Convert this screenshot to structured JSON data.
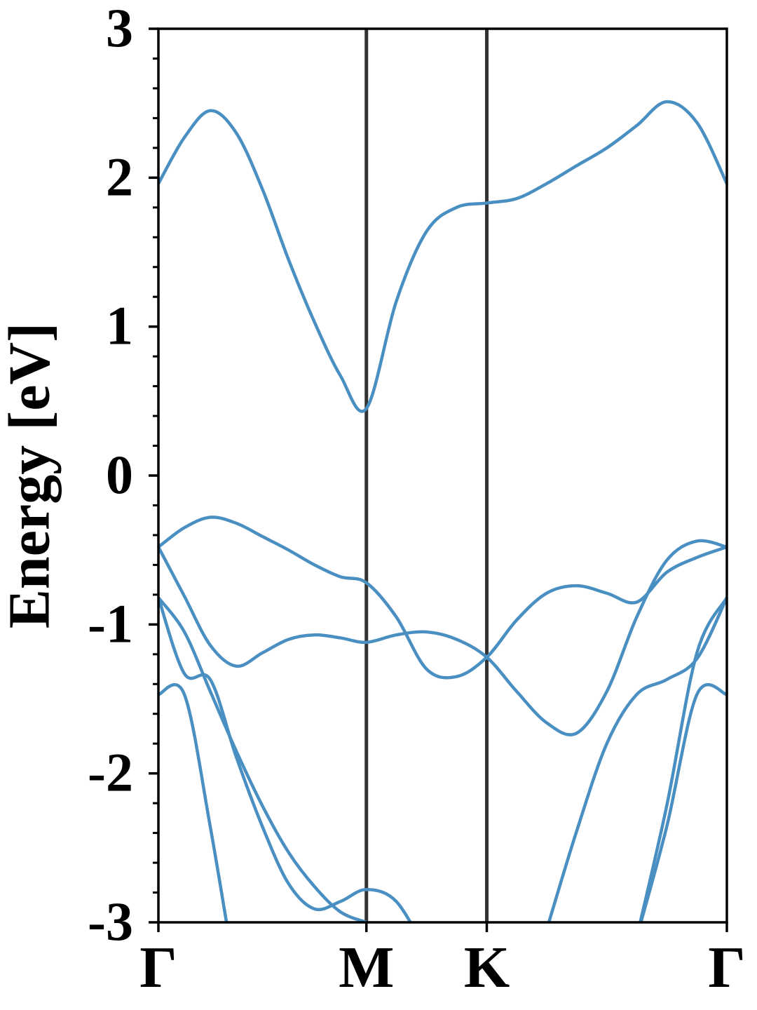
{
  "chart_data": {
    "type": "line",
    "ylabel": "Energy [eV]",
    "color": "#4a8fc2",
    "x": [
      0,
      0.072,
      0.144,
      0.216,
      0.289,
      0.361,
      0.433,
      0.505,
      0.577,
      0.66,
      0.744,
      0.827,
      0.911,
      0.994,
      1.077,
      1.16,
      1.244,
      1.327,
      1.41,
      1.494,
      1.577
    ],
    "xlim": [
      0,
      1.577
    ],
    "xticks": [
      {
        "value": 0,
        "label": "Γ"
      },
      {
        "value": 0.577,
        "label": "M"
      },
      {
        "value": 0.911,
        "label": "K"
      },
      {
        "value": 1.577,
        "label": "Γ"
      }
    ],
    "xtick_lines": [
      0.577,
      0.911
    ],
    "ylim": [
      -3,
      3
    ],
    "yticks": [
      -3,
      -2,
      -1,
      0,
      1,
      2,
      3
    ],
    "yminorticks": [
      -2.8,
      -2.6,
      -2.4,
      -2.2,
      -1.8,
      -1.6,
      -1.4,
      -1.2,
      -0.8,
      -0.6,
      -0.4,
      -0.2,
      0.2,
      0.4,
      0.6,
      0.8,
      1.2,
      1.4,
      1.6,
      1.8,
      2.2,
      2.4,
      2.6,
      2.8
    ],
    "series": [
      {
        "values": [
          1.96,
          2.27,
          2.45,
          2.3,
          1.92,
          1.45,
          1.03,
          0.67,
          0.45,
          1.17,
          1.64,
          1.8,
          1.83,
          1.86,
          1.96,
          2.08,
          2.2,
          2.35,
          2.51,
          2.37,
          1.96
        ]
      },
      {
        "values": [
          -0.48,
          -0.35,
          -0.28,
          -0.32,
          -0.41,
          -0.5,
          -0.6,
          -0.68,
          -0.72,
          -0.95,
          -1.3,
          -1.35,
          -1.22,
          -0.97,
          -0.79,
          -0.74,
          -0.79,
          -0.85,
          -0.65,
          -0.55,
          -0.48
        ]
      },
      {
        "values": [
          -0.48,
          -0.81,
          -1.14,
          -1.28,
          -1.19,
          -1.1,
          -1.07,
          -1.09,
          -1.12,
          -1.07,
          -1.05,
          -1.1,
          -1.22,
          -1.45,
          -1.66,
          -1.73,
          -1.45,
          -0.95,
          -0.57,
          -0.44,
          -0.48
        ]
      },
      {
        "values": [
          -0.82,
          -1.33,
          -1.37,
          -1.89,
          -2.36,
          -2.74,
          -2.91,
          -2.86,
          -2.78,
          -2.86,
          -3.2,
          null,
          null,
          null,
          -3.05,
          -2.39,
          -1.8,
          -1.47,
          -1.37,
          -1.23,
          -0.82
        ]
      },
      {
        "values": [
          -0.82,
          -1.05,
          -1.45,
          -1.85,
          -2.22,
          -2.53,
          -2.76,
          -2.93,
          -3.0,
          null,
          null,
          null,
          null,
          null,
          null,
          null,
          null,
          -3.1,
          -2.22,
          -1.19,
          -0.82
        ]
      },
      {
        "values": [
          -1.47,
          -1.47,
          -2.36,
          -3.4,
          null,
          null,
          null,
          null,
          null,
          null,
          null,
          null,
          null,
          null,
          null,
          null,
          null,
          -3.1,
          -2.36,
          -1.47,
          -1.47
        ]
      }
    ]
  }
}
